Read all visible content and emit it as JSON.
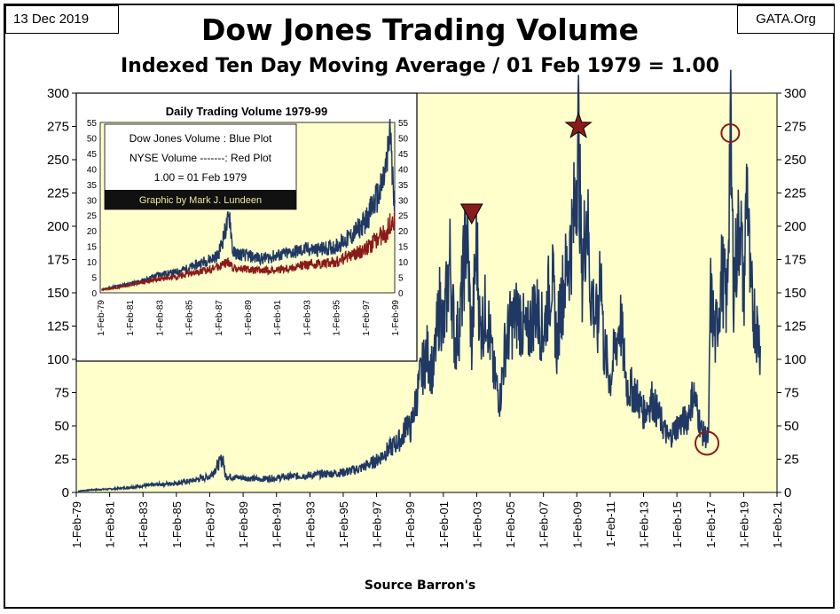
{
  "header": {
    "date": "13 Dec 2019",
    "source_site": "GATA.Org",
    "title": "Dow Jones Trading Volume",
    "subtitle": "Indexed Ten Day Moving Average / 01 Feb 1979 = 1.00"
  },
  "chart_data": [
    {
      "type": "line",
      "xlabel": "Source Barron's",
      "ylim": [
        0,
        300
      ],
      "y_ticks": [
        0,
        25,
        50,
        75,
        100,
        125,
        150,
        175,
        200,
        225,
        250,
        275,
        300
      ],
      "x_range": [
        1979,
        2021
      ],
      "x_ticks": [
        "1-Feb-79",
        "1-Feb-81",
        "1-Feb-83",
        "1-Feb-85",
        "1-Feb-87",
        "1-Feb-89",
        "1-Feb-91",
        "1-Feb-93",
        "1-Feb-95",
        "1-Feb-97",
        "1-Feb-99",
        "1-Feb-01",
        "1-Feb-03",
        "1-Feb-05",
        "1-Feb-07",
        "1-Feb-09",
        "1-Feb-11",
        "1-Feb-13",
        "1-Feb-15",
        "1-Feb-17",
        "1-Feb-19",
        "1-Feb-21"
      ],
      "grid": false,
      "colors": {
        "background": "#ffffcc",
        "line": "#1f3864",
        "marker": "#8b1a1a"
      },
      "series": [
        {
          "values": [
            [
              1979.1,
              1
            ],
            [
              1980,
              2
            ],
            [
              1981,
              2.5
            ],
            [
              1982,
              3.5
            ],
            [
              1983,
              5
            ],
            [
              1984,
              6
            ],
            [
              1985,
              7
            ],
            [
              1986,
              9
            ],
            [
              1987,
              12
            ],
            [
              1987.8,
              26
            ],
            [
              1987.9,
              14
            ],
            [
              1988,
              12
            ],
            [
              1989,
              11
            ],
            [
              1990,
              10
            ],
            [
              1991,
              11
            ],
            [
              1992,
              12
            ],
            [
              1993,
              13
            ],
            [
              1994,
              14
            ],
            [
              1995,
              15
            ],
            [
              1996,
              18
            ],
            [
              1997,
              24
            ],
            [
              1997.7,
              32
            ],
            [
              1998,
              35
            ],
            [
              1998.6,
              42
            ],
            [
              1998.8,
              56
            ],
            [
              1999,
              45
            ],
            [
              1999.6,
              85
            ],
            [
              2000,
              105
            ],
            [
              2000.4,
              90
            ],
            [
              2000.8,
              145
            ],
            [
              2001,
              120
            ],
            [
              2001.4,
              175
            ],
            [
              2001.7,
              110
            ],
            [
              2002,
              130
            ],
            [
              2002.4,
              200
            ],
            [
              2002.7,
              110
            ],
            [
              2003,
              190
            ],
            [
              2003.2,
              120
            ],
            [
              2003.6,
              140
            ],
            [
              2004,
              90
            ],
            [
              2004.4,
              70
            ],
            [
              2004.7,
              110
            ],
            [
              2005,
              125
            ],
            [
              2005.5,
              135
            ],
            [
              2006,
              115
            ],
            [
              2006.5,
              140
            ],
            [
              2007,
              120
            ],
            [
              2007.5,
              165
            ],
            [
              2007.8,
              110
            ],
            [
              2008,
              140
            ],
            [
              2008.5,
              175
            ],
            [
              2008.8,
              200
            ],
            [
              2009.1,
              270
            ],
            [
              2009.3,
              160
            ],
            [
              2009.6,
              215
            ],
            [
              2009.8,
              155
            ],
            [
              2010.3,
              120
            ],
            [
              2010.4,
              190
            ],
            [
              2010.6,
              110
            ],
            [
              2011,
              85
            ],
            [
              2011.6,
              130
            ],
            [
              2012,
              80
            ],
            [
              2012.5,
              75
            ],
            [
              2013,
              60
            ],
            [
              2013.5,
              70
            ],
            [
              2014,
              55
            ],
            [
              2014.5,
              40
            ],
            [
              2015,
              50
            ],
            [
              2015.6,
              55
            ],
            [
              2016,
              75
            ],
            [
              2016.5,
              45
            ],
            [
              2016.9,
              40
            ],
            [
              2017.0,
              150
            ],
            [
              2017.3,
              115
            ],
            [
              2017.7,
              165
            ],
            [
              2018.0,
              140
            ],
            [
              2018.2,
              275
            ],
            [
              2018.4,
              155
            ],
            [
              2018.8,
              210
            ],
            [
              2019.0,
              145
            ],
            [
              2019.2,
              240
            ],
            [
              2019.4,
              150
            ],
            [
              2019.7,
              130
            ],
            [
              2020.0,
              110
            ]
          ]
        }
      ],
      "annotations": [
        {
          "type": "triangle-down",
          "x": 2002.7,
          "y": 206
        },
        {
          "type": "star",
          "x": 2009.1,
          "y": 275
        },
        {
          "type": "circle",
          "x": 2018.2,
          "y": 270
        },
        {
          "type": "circle",
          "x": 2016.8,
          "y": 37
        }
      ]
    },
    {
      "type": "line",
      "title": "Daily Trading Volume 1979-99",
      "ylim": [
        0,
        55
      ],
      "y_ticks": [
        0,
        5,
        10,
        15,
        20,
        25,
        30,
        35,
        40,
        45,
        50,
        55
      ],
      "x_range": [
        1979,
        1999
      ],
      "x_ticks": [
        "1-Feb-79",
        "1-Feb-81",
        "1-Feb-83",
        "1-Feb-85",
        "1-Feb-87",
        "1-Feb-89",
        "1-Feb-91",
        "1-Feb-93",
        "1-Feb-95",
        "1-Feb-97",
        "1-Feb-99"
      ],
      "legend": {
        "line1": "Dow Jones Volume : Blue Plot",
        "line2": "NYSE Volume -------: Red Plot",
        "line3": "1.00 = 01 Feb 1979",
        "credit": "Graphic by Mark J. Lundeen"
      },
      "series": [
        {
          "color": "#1f3864",
          "values": [
            [
              1979.1,
              1
            ],
            [
              1980,
              2
            ],
            [
              1981,
              3
            ],
            [
              1982,
              4
            ],
            [
              1983,
              6
            ],
            [
              1984,
              6.5
            ],
            [
              1985,
              8
            ],
            [
              1986,
              10
            ],
            [
              1987,
              12
            ],
            [
              1987.8,
              25
            ],
            [
              1988,
              13
            ],
            [
              1989,
              12
            ],
            [
              1990,
              11
            ],
            [
              1991,
              12
            ],
            [
              1992,
              13
            ],
            [
              1993,
              14
            ],
            [
              1994,
              14
            ],
            [
              1995,
              15
            ],
            [
              1996,
              18
            ],
            [
              1997,
              23
            ],
            [
              1997.7,
              30
            ],
            [
              1998,
              32
            ],
            [
              1998.5,
              42
            ],
            [
              1998.7,
              55
            ],
            [
              1998.8,
              40
            ],
            [
              1999,
              30
            ]
          ]
        },
        {
          "color": "#8b1a1a",
          "values": [
            [
              1979.1,
              1
            ],
            [
              1980,
              1.5
            ],
            [
              1981,
              2.5
            ],
            [
              1982,
              3.5
            ],
            [
              1983,
              4.5
            ],
            [
              1984,
              5
            ],
            [
              1985,
              6
            ],
            [
              1986,
              7
            ],
            [
              1987,
              8.5
            ],
            [
              1987.8,
              10
            ],
            [
              1988,
              8
            ],
            [
              1989,
              7.5
            ],
            [
              1990,
              7
            ],
            [
              1991,
              7.5
            ],
            [
              1992,
              8
            ],
            [
              1993,
              9
            ],
            [
              1994,
              9.5
            ],
            [
              1995,
              10
            ],
            [
              1996,
              12
            ],
            [
              1997,
              14
            ],
            [
              1998,
              18
            ],
            [
              1998.5,
              20
            ],
            [
              1998.8,
              24
            ],
            [
              1999,
              22
            ]
          ]
        }
      ]
    }
  ]
}
